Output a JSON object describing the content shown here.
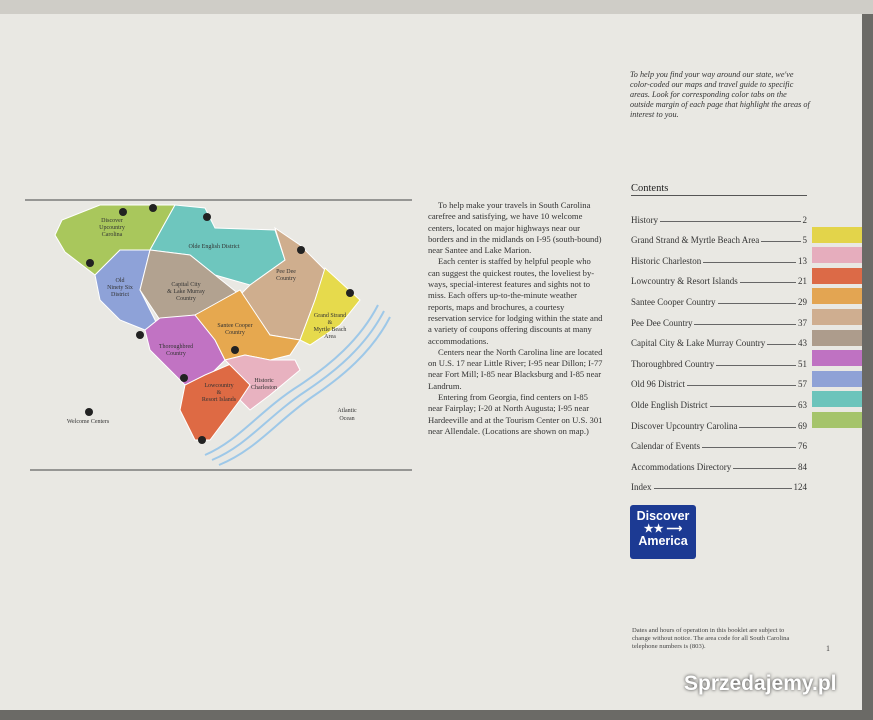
{
  "intro": "To help you find your way around our state, we've color-coded our maps and travel guide to specific areas. Look for corresponding color tabs on the outside margin of each page that highlight the areas of interest to you.",
  "map": {
    "regions": [
      {
        "lines": [
          "Discover",
          "Upcountry",
          "Carolina"
        ]
      },
      {
        "lines": [
          "Olde English District"
        ]
      },
      {
        "lines": [
          "Pee Dee",
          "Country"
        ]
      },
      {
        "lines": [
          "Grand Strand",
          "&",
          "Myrtle Beach",
          "Area"
        ]
      },
      {
        "lines": [
          "Old",
          "Ninety Six",
          "District"
        ]
      },
      {
        "lines": [
          "Capital City",
          "& Lake Murray",
          "Country"
        ]
      },
      {
        "lines": [
          "Thoroughbred",
          "Country"
        ]
      },
      {
        "lines": [
          "Santee Cooper",
          "Country"
        ]
      },
      {
        "lines": [
          "Lowcountry",
          "&",
          "Resort Islands"
        ]
      },
      {
        "lines": [
          "Historic",
          "Charleston"
        ]
      }
    ],
    "legend": "Welcome Centers",
    "ocean": [
      "Atlantic",
      "Ocean"
    ]
  },
  "body": [
    "To help make your travels in South Carolina carefree and satisfying, we have 10 welcome centers, located on major highways near our borders and in the midlands on I-95 (south-bound) near Santee and Lake Marion.",
    "Each center is staffed by helpful people who can suggest the quickest routes, the loveliest by-ways, special-interest features and sights not to miss. Each offers up-to-the-minute weather reports, maps and brochures, a courtesy reservation service for lodging within the state and a variety of coupons offering discounts at many accommodations.",
    "Centers near the North Carolina line are located on U.S. 17 near Little River; I-95 near Dillon; I-77 near Fort Mill; I-85 near Blacksburg and I-85 near Landrum.",
    "Entering from Georgia, find centers on I-85 near Fairplay; I-20 at North Augusta; I-95 near Hardeeville and at the Tourism Center on U.S. 301 near Allendale. (Locations are shown on map.)"
  ],
  "contents": {
    "title": "Contents",
    "entries": [
      {
        "label": "History",
        "page": 2
      },
      {
        "label": "Grand Strand & Myrtle Beach Area",
        "page": 5,
        "tab_color": "#e3d44a"
      },
      {
        "label": "Historic Charleston",
        "page": 13,
        "tab_color": "#e6adbd"
      },
      {
        "label": "Lowcountry & Resort Islands",
        "page": 21,
        "tab_color": "#dc6a47"
      },
      {
        "label": "Santee Cooper Country",
        "page": 29,
        "tab_color": "#e3a552"
      },
      {
        "label": "Pee Dee Country",
        "page": 37,
        "tab_color": "#cfae90"
      },
      {
        "label": "Capital City & Lake Murray Country",
        "page": 43,
        "tab_color": "#ad9c8c"
      },
      {
        "label": "Thoroughbred Country",
        "page": 51,
        "tab_color": "#bf72c2"
      },
      {
        "label": "Old 96 District",
        "page": 57,
        "tab_color": "#8fa2d6"
      },
      {
        "label": "Olde English District",
        "page": 63,
        "tab_color": "#6cc4bb"
      },
      {
        "label": "Discover Upcountry Carolina",
        "page": 69,
        "tab_color": "#a5c46b"
      },
      {
        "label": "Calendar of Events",
        "page": 76
      },
      {
        "label": "Accommodations Directory",
        "page": 84
      },
      {
        "label": "Index",
        "page": 124
      }
    ]
  },
  "logo": {
    "top": "Discover",
    "bottom": "America"
  },
  "note": "Dates and hours of operation in this booklet are subject to change without notice. The area code for all South Carolina telephone numbers is (803).",
  "page_number": 1,
  "watermark": "Sprzedajemy.pl"
}
